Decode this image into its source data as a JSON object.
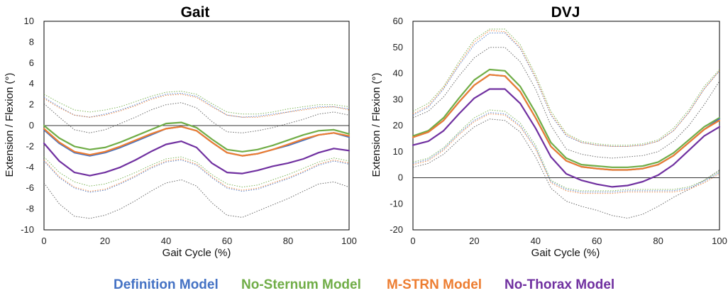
{
  "chart_data": [
    {
      "type": "line",
      "title": "Gait",
      "xlabel": "Gait Cycle (%)",
      "ylabel": "Extension / Flexion (°)",
      "xlim": [
        0,
        100
      ],
      "ylim": [
        -10,
        10
      ],
      "xticks": [
        0,
        20,
        40,
        60,
        80,
        100
      ],
      "yticks": [
        -10,
        -8,
        -6,
        -4,
        -2,
        0,
        2,
        4,
        6,
        8,
        10
      ],
      "reference_line_y": 0,
      "x": [
        0,
        5,
        10,
        15,
        20,
        25,
        30,
        35,
        40,
        45,
        50,
        55,
        60,
        65,
        70,
        75,
        80,
        85,
        90,
        95,
        100
      ],
      "series": [
        {
          "name": "Definition Model",
          "color": "#4472C4",
          "values": [
            -0.4,
            -1.7,
            -2.6,
            -2.9,
            -2.6,
            -2.1,
            -1.5,
            -0.9,
            -0.3,
            -0.1,
            -0.5,
            -1.6,
            -2.6,
            -2.9,
            -2.7,
            -2.3,
            -1.9,
            -1.4,
            -0.9,
            -0.7,
            -1.1
          ]
        },
        {
          "name": "No-Sternum Model",
          "color": "#70AD47",
          "values": [
            0.0,
            -1.2,
            -2.0,
            -2.3,
            -2.1,
            -1.6,
            -1.0,
            -0.4,
            0.2,
            0.3,
            -0.2,
            -1.3,
            -2.3,
            -2.5,
            -2.3,
            -1.9,
            -1.4,
            -0.9,
            -0.5,
            -0.4,
            -0.8
          ]
        },
        {
          "name": "M-STRN Model",
          "color": "#ED7D31",
          "values": [
            -0.3,
            -1.6,
            -2.5,
            -2.8,
            -2.5,
            -2.0,
            -1.4,
            -0.8,
            -0.3,
            -0.1,
            -0.5,
            -1.6,
            -2.6,
            -2.9,
            -2.7,
            -2.3,
            -1.8,
            -1.3,
            -0.9,
            -0.7,
            -1.0
          ]
        },
        {
          "name": "No-Thorax Model",
          "color": "#7030A0",
          "values": [
            -1.7,
            -3.4,
            -4.5,
            -4.8,
            -4.5,
            -4.0,
            -3.3,
            -2.5,
            -1.8,
            -1.5,
            -2.1,
            -3.6,
            -4.5,
            -4.6,
            -4.3,
            -3.9,
            -3.6,
            -3.2,
            -2.6,
            -2.2,
            -2.4
          ]
        }
      ],
      "bands": [
        {
          "color": "#4472C4",
          "upper": [
            2.7,
            1.8,
            1.0,
            0.8,
            1.1,
            1.5,
            2.0,
            2.6,
            3.0,
            3.1,
            2.8,
            1.9,
            1.0,
            0.8,
            0.9,
            1.1,
            1.3,
            1.6,
            1.8,
            1.8,
            1.6
          ],
          "lower": [
            -3.4,
            -5.0,
            -6.0,
            -6.4,
            -6.2,
            -5.6,
            -4.9,
            -4.1,
            -3.5,
            -3.3,
            -3.8,
            -5.0,
            -6.0,
            -6.3,
            -6.1,
            -5.6,
            -5.1,
            -4.5,
            -3.8,
            -3.4,
            -3.7
          ]
        },
        {
          "color": "#70AD47",
          "upper": [
            3.0,
            2.2,
            1.5,
            1.3,
            1.5,
            1.8,
            2.3,
            2.8,
            3.2,
            3.3,
            3.0,
            2.1,
            1.3,
            1.1,
            1.1,
            1.3,
            1.6,
            1.8,
            2.0,
            2.0,
            1.8
          ],
          "lower": [
            -3.0,
            -4.5,
            -5.4,
            -5.8,
            -5.6,
            -5.1,
            -4.5,
            -3.8,
            -3.2,
            -3.0,
            -3.5,
            -4.7,
            -5.6,
            -5.9,
            -5.7,
            -5.2,
            -4.7,
            -4.1,
            -3.5,
            -3.1,
            -3.4
          ]
        },
        {
          "color": "#ED7D31",
          "upper": [
            2.6,
            1.7,
            1.0,
            0.8,
            1.0,
            1.4,
            1.9,
            2.5,
            2.9,
            3.0,
            2.7,
            1.8,
            1.0,
            0.8,
            0.8,
            1.0,
            1.3,
            1.5,
            1.7,
            1.8,
            1.5
          ],
          "lower": [
            -3.3,
            -4.9,
            -5.9,
            -6.3,
            -6.1,
            -5.5,
            -4.8,
            -4.0,
            -3.4,
            -3.2,
            -3.7,
            -4.9,
            -5.9,
            -6.2,
            -6.0,
            -5.5,
            -5.0,
            -4.4,
            -3.7,
            -3.3,
            -3.6
          ]
        },
        {
          "color": "#595959",
          "upper": [
            2.1,
            0.8,
            -0.4,
            -0.7,
            -0.4,
            0.2,
            0.8,
            1.5,
            2.0,
            2.2,
            1.7,
            0.4,
            -0.6,
            -0.7,
            -0.5,
            -0.2,
            0.2,
            0.6,
            1.1,
            1.3,
            1.0
          ],
          "lower": [
            -5.5,
            -7.5,
            -8.7,
            -8.9,
            -8.6,
            -8.0,
            -7.2,
            -6.3,
            -5.5,
            -5.2,
            -5.8,
            -7.4,
            -8.6,
            -8.8,
            -8.2,
            -7.6,
            -7.0,
            -6.3,
            -5.6,
            -5.4,
            -5.9
          ]
        }
      ]
    },
    {
      "type": "line",
      "title": "DVJ",
      "xlabel": "Gait Cycle (%)",
      "ylabel": "Extension / Flexion (°)",
      "xlim": [
        0,
        100
      ],
      "ylim": [
        -20,
        60
      ],
      "xticks": [
        0,
        20,
        40,
        60,
        80,
        100
      ],
      "yticks": [
        -20,
        -10,
        0,
        10,
        20,
        30,
        40,
        50,
        60
      ],
      "reference_line_y": 0,
      "x": [
        0,
        5,
        10,
        15,
        20,
        25,
        30,
        35,
        40,
        45,
        50,
        55,
        60,
        65,
        70,
        75,
        80,
        85,
        90,
        95,
        100
      ],
      "series": [
        {
          "name": "Definition Model",
          "color": "#4472C4",
          "values": [
            15.5,
            17.5,
            22,
            29,
            35.5,
            39.5,
            39,
            33,
            23,
            12,
            6.5,
            4.2,
            3.5,
            3,
            3,
            3.5,
            5,
            8.5,
            13.5,
            18.5,
            22.5
          ]
        },
        {
          "name": "No-Sternum Model",
          "color": "#70AD47",
          "values": [
            16,
            18,
            23,
            30.5,
            37.5,
            41.5,
            41,
            35,
            25,
            13.5,
            7.5,
            5,
            4.5,
            4,
            4,
            4.5,
            6,
            9.5,
            14.5,
            19.5,
            23
          ]
        },
        {
          "name": "M-STRN Model",
          "color": "#ED7D31",
          "values": [
            15.5,
            17.5,
            22,
            29,
            35.5,
            39.5,
            39,
            33,
            23,
            12,
            6.5,
            4.2,
            3.5,
            3,
            3,
            3.5,
            5,
            8.5,
            13.5,
            18.5,
            22
          ]
        },
        {
          "name": "No-Thorax Model",
          "color": "#7030A0",
          "values": [
            12.5,
            14,
            18,
            24.5,
            30.5,
            34,
            34,
            28.5,
            19,
            8,
            1.5,
            -1,
            -2.5,
            -3.5,
            -3,
            -1.5,
            1,
            5,
            10.5,
            16,
            19.5
          ]
        }
      ],
      "bands": [
        {
          "color": "#4472C4",
          "upper": [
            24,
            27,
            34,
            43,
            51,
            55.5,
            55.5,
            49.5,
            38,
            24,
            16,
            13.5,
            12.5,
            12,
            12,
            12.5,
            14,
            18,
            25,
            34,
            41
          ]
        },
        {
          "color": "#70AD47",
          "upper": [
            25.5,
            28.5,
            35,
            44.5,
            53,
            57,
            57,
            51,
            39.5,
            25.5,
            17,
            14,
            13,
            12.5,
            12.5,
            13,
            14.5,
            19,
            26,
            35,
            41.5
          ]
        },
        {
          "color": "#ED7D31",
          "upper": [
            24.5,
            27.5,
            34.5,
            43.5,
            52,
            56.5,
            56,
            50,
            38.5,
            24.5,
            16.5,
            13.5,
            12.5,
            12,
            12,
            12.5,
            14,
            18,
            25,
            34,
            41
          ]
        },
        {
          "color": "#595959",
          "upper": [
            23,
            25.5,
            31,
            39,
            46,
            50,
            50,
            44.5,
            34,
            20,
            11,
            9,
            8,
            7.5,
            8,
            8.5,
            10,
            14,
            20,
            28,
            37
          ],
          "lower": [
            4,
            5.5,
            9,
            14.5,
            19.5,
            22.5,
            22,
            17.5,
            8,
            -4,
            -9,
            -11,
            -12.5,
            -14.5,
            -15.5,
            -14,
            -11,
            -7.5,
            -4.5,
            -1,
            3
          ]
        },
        {
          "color": "#4472C4",
          "lower": [
            5.5,
            7,
            11,
            17,
            22,
            25,
            24.5,
            20,
            11.5,
            -1.5,
            -4.5,
            -5.5,
            -5.5,
            -5.5,
            -5,
            -5,
            -5,
            -5,
            -4,
            -1.5,
            2
          ]
        },
        {
          "color": "#70AD47",
          "lower": [
            6,
            7.5,
            11.5,
            17.5,
            23,
            26,
            25.5,
            21,
            12.5,
            -1,
            -4,
            -5,
            -5,
            -5,
            -4.5,
            -4.5,
            -4.5,
            -4.5,
            -3.5,
            -1,
            2.5
          ]
        },
        {
          "color": "#ED7D31",
          "lower": [
            5,
            6.5,
            10.5,
            16.5,
            21.5,
            24.5,
            24,
            19.5,
            11,
            -2,
            -5,
            -6,
            -6,
            -6,
            -5.5,
            -5.5,
            -5.5,
            -5.5,
            -4.5,
            -2,
            1.5
          ]
        }
      ]
    }
  ],
  "legend": [
    {
      "label": "Definition Model",
      "color": "#4472C4"
    },
    {
      "label": "No-Sternum Model",
      "color": "#70AD47"
    },
    {
      "label": "M-STRN Model",
      "color": "#ED7D31"
    },
    {
      "label": "No-Thorax Model",
      "color": "#7030A0"
    }
  ]
}
